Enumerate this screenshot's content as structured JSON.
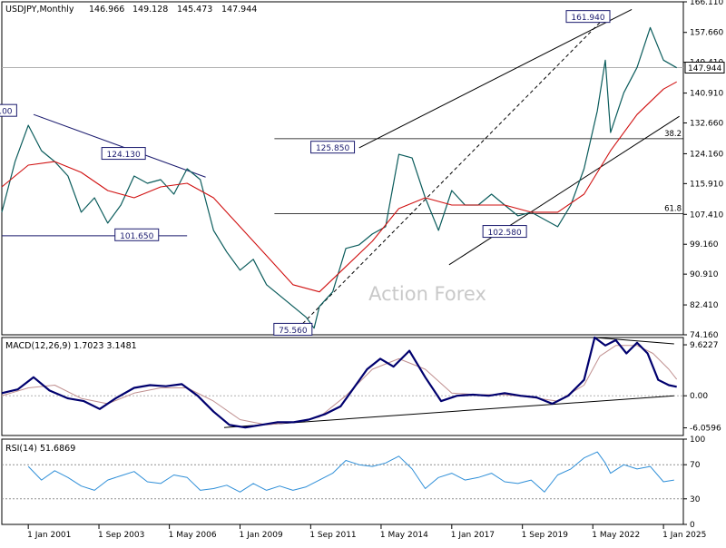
{
  "chart_data": [
    {
      "type": "line",
      "title": "USDJPY,Monthly",
      "ohlc_readout": [
        "146.966",
        "149.128",
        "145.473",
        "147.944"
      ],
      "watermark": "Action Forex",
      "y_ticks": [
        "166.110",
        "157.660",
        "149.410",
        "140.910",
        "132.660",
        "124.160",
        "115.910",
        "107.410",
        "99.160",
        "90.910",
        "82.410",
        "74.160"
      ],
      "ylim": [
        74.16,
        166.11
      ],
      "last_price": "147.944",
      "price_labels": [
        "161.940",
        "125.850",
        "124.130",
        "101.650",
        "102.580",
        "75.560",
        ".00"
      ],
      "fib_labels": [
        "38.2",
        "61.8"
      ],
      "x_ticks": [
        "1 Jan 2001",
        "1 Sep 2003",
        "1 May 2006",
        "1 Jan 2009",
        "1 Sep 2011",
        "1 May 2014",
        "1 Jan 2017",
        "1 Sep 2019",
        "1 May 2022",
        "1 Jan 2025"
      ],
      "series": [
        {
          "name": "USDJPY",
          "x": [
            2000.0,
            2000.5,
            2001.0,
            2001.5,
            2002.0,
            2002.5,
            2003.0,
            2003.5,
            2004.0,
            2004.5,
            2005.0,
            2005.5,
            2006.0,
            2006.5,
            2007.0,
            2007.5,
            2008.0,
            2008.5,
            2009.0,
            2009.5,
            2010.0,
            2010.5,
            2011.0,
            2011.5,
            2011.8,
            2012.0,
            2012.5,
            2013.0,
            2013.5,
            2014.0,
            2014.5,
            2015.0,
            2015.5,
            2016.0,
            2016.5,
            2017.0,
            2017.5,
            2018.0,
            2018.5,
            2019.0,
            2019.5,
            2020.0,
            2020.5,
            2021.0,
            2021.5,
            2022.0,
            2022.5,
            2022.8,
            2023.0,
            2023.5,
            2024.0,
            2024.5,
            2025.0,
            2025.5
          ],
          "values": [
            108,
            122,
            132,
            125,
            122,
            118,
            108,
            112,
            105,
            110,
            118,
            116,
            117,
            113,
            120,
            117,
            103,
            97,
            92,
            95,
            88,
            85,
            82,
            79,
            76,
            82,
            86,
            98,
            99,
            102,
            104,
            124,
            123,
            112,
            103,
            114,
            110,
            110,
            113,
            110,
            107,
            108,
            106,
            104,
            110,
            120,
            136,
            150,
            130,
            141,
            148,
            159,
            150,
            147.9
          ]
        },
        {
          "name": "MA",
          "x": [
            2000.0,
            2001.0,
            2002.0,
            2003.0,
            2004.0,
            2005.0,
            2006.0,
            2007.0,
            2008.0,
            2009.0,
            2010.0,
            2011.0,
            2012.0,
            2013.0,
            2014.0,
            2015.0,
            2016.0,
            2017.0,
            2018.0,
            2019.0,
            2020.0,
            2021.0,
            2022.0,
            2023.0,
            2024.0,
            2025.0,
            2025.5
          ],
          "values": [
            115,
            121,
            122,
            119,
            114,
            112,
            115,
            116,
            112,
            104,
            96,
            88,
            86,
            93,
            100,
            109,
            112,
            110,
            110,
            110,
            108,
            108,
            113,
            125,
            135,
            142,
            144
          ]
        },
        {
          "name": "MACD",
          "x": [
            2000.0,
            2000.6,
            2001.2,
            2001.8,
            2002.5,
            2003.1,
            2003.7,
            2004.3,
            2005.0,
            2005.6,
            2006.2,
            2006.8,
            2007.4,
            2008.0,
            2008.6,
            2009.2,
            2009.8,
            2010.4,
            2011.0,
            2011.6,
            2012.2,
            2012.8,
            2013.3,
            2013.8,
            2014.3,
            2014.8,
            2015.4,
            2016.0,
            2016.6,
            2017.2,
            2017.8,
            2018.4,
            2019.0,
            2019.6,
            2020.2,
            2020.8,
            2021.4,
            2022.0,
            2022.4,
            2022.8,
            2023.2,
            2023.6,
            2024.0,
            2024.4,
            2024.8,
            2025.2,
            2025.5
          ],
          "values": [
            0.5,
            1.2,
            3.5,
            1.0,
            -0.5,
            -1.0,
            -2.5,
            -0.5,
            1.5,
            2.0,
            1.8,
            2.2,
            0.0,
            -3.0,
            -5.5,
            -6.0,
            -5.5,
            -5.0,
            -5.0,
            -4.5,
            -3.5,
            -2.0,
            1.5,
            5.0,
            7.0,
            5.5,
            8.5,
            3.5,
            -1.0,
            0.0,
            0.2,
            0.0,
            0.5,
            0.0,
            -0.3,
            -1.5,
            0.0,
            3.0,
            11.0,
            9.5,
            10.5,
            8.0,
            10.0,
            8.0,
            3.0,
            2.0,
            1.7
          ]
        },
        {
          "name": "Signal",
          "x": [
            2000.0,
            2001.0,
            2002.0,
            2003.0,
            2004.0,
            2005.0,
            2006.0,
            2007.0,
            2008.0,
            2009.0,
            2010.0,
            2011.0,
            2012.0,
            2013.0,
            2014.0,
            2015.0,
            2016.0,
            2017.0,
            2018.0,
            2019.0,
            2020.0,
            2021.0,
            2022.0,
            2022.6,
            2023.2,
            2024.0,
            2024.6,
            2025.2,
            2025.5
          ],
          "values": [
            0,
            1.5,
            2.0,
            -0.5,
            -1.5,
            0.5,
            1.5,
            1.5,
            -1.0,
            -4.5,
            -5.5,
            -5.0,
            -4.0,
            0.0,
            5.0,
            7.0,
            5.0,
            0.5,
            0.2,
            0.2,
            -0.3,
            -1.0,
            2.0,
            7.5,
            9.5,
            9.5,
            8.0,
            5.0,
            3.1
          ]
        },
        {
          "name": "RSI",
          "x": [
            2001.0,
            2001.5,
            2002.0,
            2002.5,
            2003.0,
            2003.5,
            2004.0,
            2004.5,
            2005.0,
            2005.5,
            2006.0,
            2006.5,
            2007.0,
            2007.5,
            2008.0,
            2008.5,
            2009.0,
            2009.5,
            2010.0,
            2010.5,
            2011.0,
            2011.5,
            2012.0,
            2012.5,
            2013.0,
            2013.5,
            2014.0,
            2014.5,
            2015.0,
            2015.5,
            2016.0,
            2016.5,
            2017.0,
            2017.5,
            2018.0,
            2018.5,
            2019.0,
            2019.5,
            2020.0,
            2020.5,
            2021.0,
            2021.5,
            2022.0,
            2022.5,
            2022.8,
            2023.0,
            2023.5,
            2024.0,
            2024.5,
            2025.0,
            2025.4
          ],
          "values": [
            68,
            52,
            63,
            55,
            45,
            40,
            52,
            57,
            62,
            50,
            48,
            58,
            55,
            40,
            42,
            46,
            38,
            48,
            40,
            45,
            40,
            44,
            52,
            60,
            75,
            70,
            68,
            72,
            80,
            65,
            42,
            55,
            60,
            52,
            55,
            60,
            50,
            48,
            52,
            38,
            58,
            65,
            78,
            85,
            72,
            60,
            70,
            65,
            68,
            50,
            52
          ]
        }
      ],
      "macd": {
        "label": "MACD(12,26,9) 1.7023 3.1481",
        "y_ticks": [
          "9.6227",
          "0.00",
          "-6.0596"
        ],
        "ylim": [
          -7.5,
          11.0
        ]
      },
      "rsi": {
        "label": "RSI(14) 51.6869",
        "y_ticks": [
          "100",
          "70",
          "30",
          "0"
        ],
        "ylim": [
          0,
          100
        ]
      }
    }
  ]
}
